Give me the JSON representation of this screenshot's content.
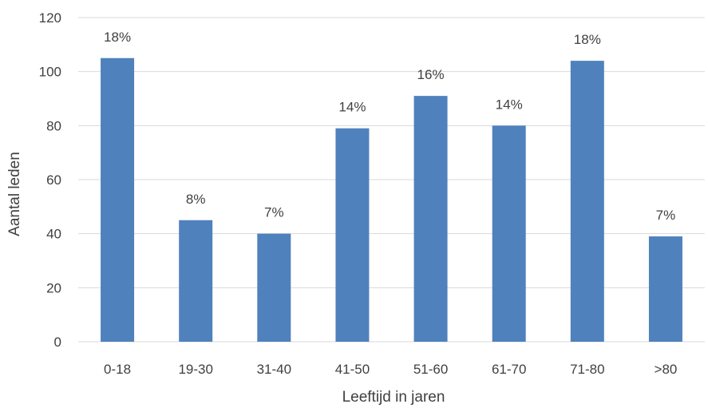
{
  "chart_data": {
    "type": "bar",
    "categories": [
      "0-18",
      "19-30",
      "31-40",
      "41-50",
      "51-60",
      "61-70",
      "71-80",
      ">80"
    ],
    "values": [
      105,
      45,
      40,
      79,
      91,
      80,
      104,
      39
    ],
    "data_labels": [
      "18%",
      "8%",
      "7%",
      "14%",
      "16%",
      "14%",
      "18%",
      "7%"
    ],
    "title": "",
    "xlabel": "Leeftijd in jaren",
    "ylabel": "Aantal leden",
    "ylim": [
      0,
      120
    ],
    "yticks": [
      "0",
      "20",
      "40",
      "60",
      "80",
      "100",
      "120"
    ],
    "grid": true,
    "bar_color": "#4F81BD",
    "grid_color": "#D9D9D9"
  }
}
